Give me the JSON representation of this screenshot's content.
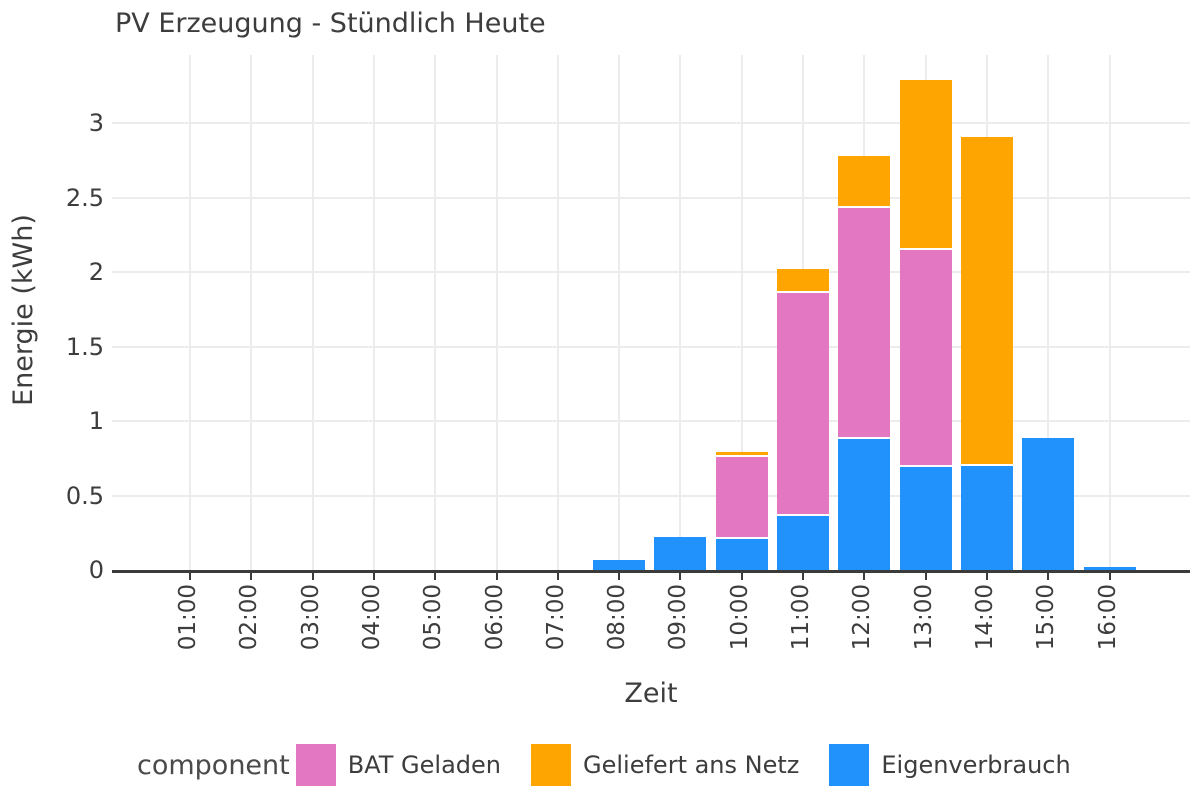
{
  "chart": {
    "title": "PV Erzeugung - Stündlich Heute",
    "xlabel": "Zeit",
    "ylabel": "Energie (kWh)",
    "legend_title": "component"
  },
  "chart_data": {
    "type": "bar",
    "stacked": true,
    "title": "PV Erzeugung - Stündlich Heute",
    "xlabel": "Zeit",
    "ylabel": "Energie (kWh)",
    "grid": true,
    "categories": [
      "01:00",
      "02:00",
      "03:00",
      "04:00",
      "05:00",
      "06:00",
      "07:00",
      "08:00",
      "09:00",
      "10:00",
      "11:00",
      "12:00",
      "13:00",
      "14:00",
      "15:00",
      "16:00"
    ],
    "series": [
      {
        "name": "Eigenverbrauch",
        "color": "#2191fb",
        "values": [
          0,
          0,
          0,
          0,
          0,
          0,
          0,
          0.07,
          0.22,
          0.21,
          0.36,
          0.88,
          0.69,
          0.7,
          0.89,
          0.02
        ]
      },
      {
        "name": "BAT Geladen",
        "color": "#e377c2",
        "values": [
          0,
          0,
          0,
          0,
          0,
          0,
          0,
          0,
          0,
          0.55,
          1.5,
          1.55,
          1.46,
          0,
          0,
          0
        ]
      },
      {
        "name": "Geliefert ans Netz",
        "color": "#ffa502",
        "values": [
          0,
          0,
          0,
          0,
          0,
          0,
          0,
          0,
          0,
          0.03,
          0.16,
          0.35,
          1.14,
          2.21,
          0,
          0
        ]
      }
    ],
    "stack_order_bottom_to_top": [
      "Eigenverbrauch",
      "BAT Geladen",
      "Geliefert ans Netz"
    ],
    "legend": {
      "title": "component",
      "position": "bottom",
      "entries": [
        "BAT Geladen",
        "Geliefert ans Netz",
        "Eigenverbrauch"
      ]
    },
    "yticks": [
      0,
      0.5,
      1,
      1.5,
      2,
      2.5,
      3
    ],
    "ylim": [
      0,
      3.46
    ],
    "axis_color": "#3b3b3b",
    "grid_color": "#ececec",
    "text_color": "#3d3d3d"
  }
}
